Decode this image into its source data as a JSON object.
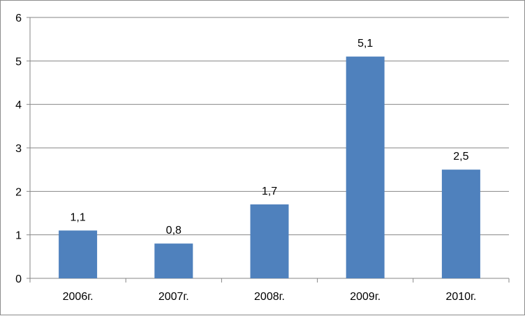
{
  "chart_data": {
    "type": "bar",
    "categories": [
      "2006г.",
      "2007г.",
      "2008г.",
      "2009г.",
      "2010г."
    ],
    "values": [
      1.1,
      0.8,
      1.7,
      5.1,
      2.5
    ],
    "data_labels": [
      "1,1",
      "0,8",
      "1,7",
      "5,1",
      "2,5"
    ],
    "y_ticks": [
      "0",
      "1",
      "2",
      "3",
      "4",
      "5",
      "6"
    ],
    "ylim": [
      0,
      6
    ],
    "grid": true,
    "legend": "none",
    "bar_color": "#4f81bd",
    "grid_color": "#868686",
    "axis_color": "#868686"
  }
}
